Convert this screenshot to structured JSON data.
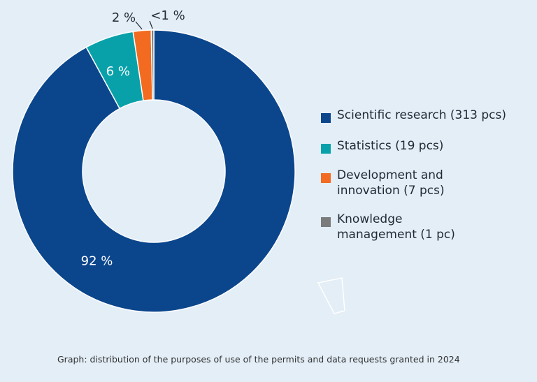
{
  "chart_data": {
    "type": "pie",
    "variant": "donut",
    "slices": [
      {
        "label": "Scientific research (313  pcs)",
        "value": 313,
        "pct_label": "92 %",
        "color": "#0b468d"
      },
      {
        "label": "Statistics (19 pcs)",
        "value": 19,
        "pct_label": "6 %",
        "color": "#08a1aa"
      },
      {
        "label": "Development and\ninnovation (7 pcs)",
        "value": 7,
        "pct_label": "2 %",
        "color": "#f26b21"
      },
      {
        "label": "Knowledge\nmanagement (1 pc)",
        "value": 1,
        "pct_label": "<1 %",
        "color": "#7b7b7b"
      }
    ],
    "legend_position": "right"
  },
  "caption": "Graph: distribution of the purposes of use of the permits and data requests granted in 2024"
}
